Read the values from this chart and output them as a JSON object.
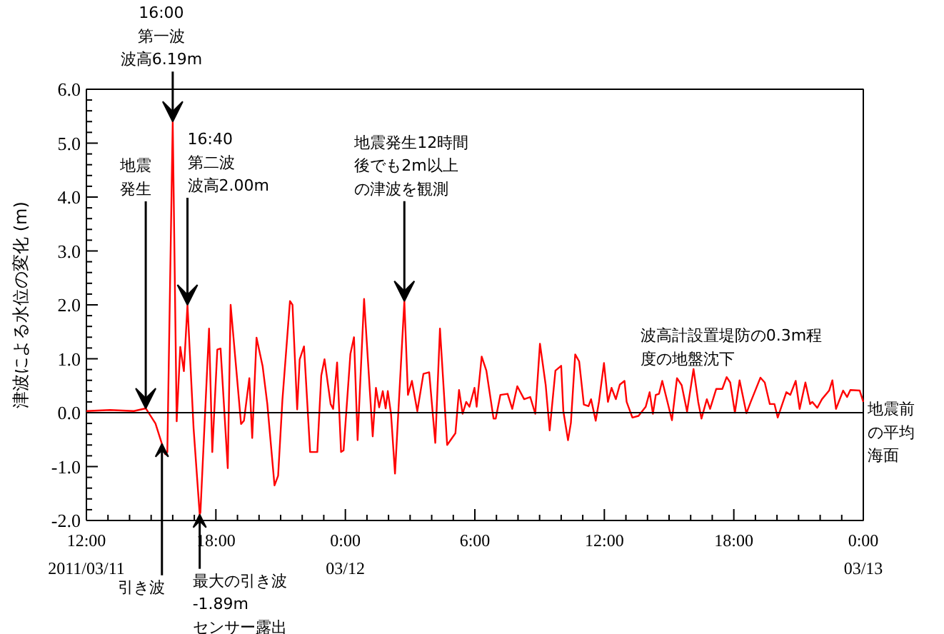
{
  "chart_data": {
    "type": "line",
    "ylabel": "津波による水位の変化 (m)",
    "xlim": [
      "2011-03-11T12:00",
      "2011-03-13T00:00"
    ],
    "ylim": [
      -2,
      6
    ],
    "xticks": [
      {
        "value": "2011-03-11T12:00",
        "label": "12:00\n2011/03/11"
      },
      {
        "value": "2011-03-11T18:00",
        "label": "18:00"
      },
      {
        "value": "2011-03-12T00:00",
        "label": "0:00\n03/12"
      },
      {
        "value": "2011-03-12T06:00",
        "label": "6:00"
      },
      {
        "value": "2011-03-12T12:00",
        "label": "12:00"
      },
      {
        "value": "2011-03-12T18:00",
        "label": "18:00"
      },
      {
        "value": "2011-03-13T00:00",
        "label": "0:00\n03/13"
      }
    ],
    "yticks": [
      {
        "value": -2,
        "label": "-2.0"
      },
      {
        "value": -1,
        "label": "-1.0"
      },
      {
        "value": 0,
        "label": "0.0"
      },
      {
        "value": 1,
        "label": "1.0"
      },
      {
        "value": 2,
        "label": "2.0"
      },
      {
        "value": 3,
        "label": "3.0"
      },
      {
        "value": 4,
        "label": "4.0"
      },
      {
        "value": 5,
        "label": "5.0"
      },
      {
        "value": 6,
        "label": "6.0"
      }
    ],
    "series": [
      {
        "color": "#ff0000",
        "x": [
          "2011-03-11T12:00",
          "2011-03-11T13:06",
          "2011-03-11T14:12",
          "2011-03-11T14:45",
          "2011-03-11T15:12",
          "2011-03-11T15:39",
          "2011-03-11T15:45",
          "2011-03-11T16:00",
          "2011-03-11T16:11",
          "2011-03-11T16:21",
          "2011-03-11T16:31",
          "2011-03-11T16:41",
          "2011-03-11T16:58",
          "2011-03-11T17:15",
          "2011-03-11T17:17",
          "2011-03-11T17:41",
          "2011-03-11T17:50",
          "2011-03-11T18:04",
          "2011-03-11T18:13",
          "2011-03-11T18:33",
          "2011-03-11T18:41",
          "2011-03-11T19:10",
          "2011-03-11T19:18",
          "2011-03-11T19:33",
          "2011-03-11T19:41",
          "2011-03-11T19:53",
          "2011-03-11T20:10",
          "2011-03-11T20:23",
          "2011-03-11T20:43",
          "2011-03-11T20:53",
          "2011-03-11T21:05",
          "2011-03-11T21:26",
          "2011-03-11T21:33",
          "2011-03-11T21:46",
          "2011-03-11T21:53",
          "2011-03-11T22:05",
          "2011-03-11T22:22",
          "2011-03-11T22:42",
          "2011-03-11T22:53",
          "2011-03-11T23:02",
          "2011-03-11T23:19",
          "2011-03-11T23:26",
          "2011-03-11T23:37",
          "2011-03-11T23:48",
          "2011-03-11T23:55",
          "2011-03-12T00:14",
          "2011-03-12T00:24",
          "2011-03-12T00:34",
          "2011-03-12T00:52",
          "2011-03-12T01:16",
          "2011-03-12T01:25",
          "2011-03-12T01:34",
          "2011-03-12T01:44",
          "2011-03-12T01:52",
          "2011-03-12T01:58",
          "2011-03-12T02:07",
          "2011-03-12T02:18",
          "2011-03-12T02:44",
          "2011-03-12T02:54",
          "2011-03-12T03:05",
          "2011-03-12T03:20",
          "2011-03-12T03:37",
          "2011-03-12T03:53",
          "2011-03-12T04:10",
          "2011-03-12T04:23",
          "2011-03-12T04:43",
          "2011-03-12T05:06",
          "2011-03-12T05:16",
          "2011-03-12T05:26",
          "2011-03-12T05:36",
          "2011-03-12T05:45",
          "2011-03-12T05:59",
          "2011-03-12T06:05",
          "2011-03-12T06:19",
          "2011-03-12T06:32",
          "2011-03-12T06:52",
          "2011-03-12T06:58",
          "2011-03-12T07:11",
          "2011-03-12T07:31",
          "2011-03-12T07:44",
          "2011-03-12T07:58",
          "2011-03-12T08:17",
          "2011-03-12T08:34",
          "2011-03-12T08:48",
          "2011-03-12T09:01",
          "2011-03-12T09:17",
          "2011-03-12T09:28",
          "2011-03-12T09:44",
          "2011-03-12T10:00",
          "2011-03-12T10:06",
          "2011-03-12T10:19",
          "2011-03-12T10:27",
          "2011-03-12T10:39",
          "2011-03-12T10:50",
          "2011-03-12T11:03",
          "2011-03-12T11:16",
          "2011-03-12T11:23",
          "2011-03-12T11:36",
          "2011-03-12T11:45",
          "2011-03-12T11:59",
          "2011-03-12T12:10",
          "2011-03-12T12:20",
          "2011-03-12T12:32",
          "2011-03-12T12:43",
          "2011-03-12T12:56",
          "2011-03-12T13:02",
          "2011-03-12T13:18",
          "2011-03-12T13:35",
          "2011-03-12T13:55",
          "2011-03-12T14:06",
          "2011-03-12T14:15",
          "2011-03-12T14:23",
          "2011-03-12T14:32",
          "2011-03-12T14:41",
          "2011-03-12T15:08",
          "2011-03-12T15:22",
          "2011-03-12T15:35",
          "2011-03-12T15:50",
          "2011-03-12T16:08",
          "2011-03-12T16:21",
          "2011-03-12T16:30",
          "2011-03-12T16:45",
          "2011-03-12T16:54",
          "2011-03-12T17:11",
          "2011-03-12T17:28",
          "2011-03-12T17:40",
          "2011-03-12T17:50",
          "2011-03-12T18:03",
          "2011-03-12T18:16",
          "2011-03-12T18:35",
          "2011-03-12T18:47",
          "2011-03-12T19:14",
          "2011-03-12T19:26",
          "2011-03-12T19:40",
          "2011-03-12T19:53",
          "2011-03-12T20:02",
          "2011-03-12T20:26",
          "2011-03-12T20:37",
          "2011-03-12T20:52",
          "2011-03-12T21:03",
          "2011-03-12T21:19",
          "2011-03-12T21:32",
          "2011-03-12T21:38",
          "2011-03-12T21:52",
          "2011-03-12T22:05",
          "2011-03-12T22:25",
          "2011-03-12T22:34",
          "2011-03-12T22:44",
          "2011-03-12T23:04",
          "2011-03-12T23:15",
          "2011-03-12T23:24",
          "2011-03-12T23:50",
          "2011-03-13T00:00"
        ],
        "values": [
          0.03,
          0.05,
          0.03,
          0.08,
          -0.2,
          -0.77,
          -0.73,
          5.4,
          -0.16,
          1.22,
          0.77,
          2.0,
          -0.29,
          -1.89,
          -1.85,
          1.56,
          -0.73,
          1.17,
          1.19,
          -1.03,
          2.0,
          -0.21,
          -0.15,
          0.64,
          -0.47,
          1.39,
          0.86,
          0.16,
          -1.35,
          -1.17,
          0.24,
          2.07,
          2.0,
          0.06,
          0.99,
          1.23,
          -0.73,
          -0.73,
          0.69,
          0.99,
          0.16,
          0.07,
          0.93,
          -0.73,
          -0.7,
          1.09,
          1.4,
          -0.51,
          2.11,
          -0.44,
          0.46,
          0.1,
          0.4,
          0.08,
          0.4,
          -0.03,
          -1.13,
          2.07,
          0.33,
          0.59,
          0.03,
          0.72,
          0.75,
          -0.56,
          1.56,
          -0.6,
          -0.38,
          0.42,
          -0.02,
          0.2,
          0.11,
          0.46,
          0.11,
          1.04,
          0.78,
          -0.11,
          -0.11,
          0.33,
          0.35,
          0.07,
          0.49,
          0.25,
          0.29,
          -0.02,
          1.28,
          0.51,
          -0.33,
          0.78,
          0.87,
          0.03,
          -0.51,
          -0.19,
          1.08,
          0.95,
          0.15,
          0.12,
          0.25,
          -0.15,
          0.2,
          0.92,
          0.2,
          0.46,
          0.25,
          0.52,
          0.59,
          0.2,
          -0.09,
          -0.06,
          0.11,
          0.38,
          -0.02,
          0.33,
          0.35,
          0.59,
          -0.14,
          0.64,
          0.51,
          0.02,
          0.81,
          0.2,
          -0.11,
          0.25,
          0.07,
          0.44,
          0.44,
          0.66,
          0.56,
          0,
          0.6,
          -0.01,
          0.2,
          0.65,
          0.56,
          0.16,
          0.16,
          -0.09,
          0.38,
          0.33,
          0.59,
          0.07,
          0.56,
          0.16,
          0.2,
          0.09,
          0.25,
          0.41,
          0.6,
          0.07,
          0.41,
          0.29,
          0.42,
          0.41,
          0.2
        ]
      }
    ],
    "ref_lines": [
      {
        "axis": "y",
        "value": 0,
        "label": "地震前の平均海面"
      }
    ],
    "annotations": [
      {
        "text": "地震発生",
        "x": "2011-03-11T14:45",
        "y": 0.08
      },
      {
        "text": "16:00第一波波高6.19m",
        "x": "2011-03-11T16:00",
        "y": 5.4
      },
      {
        "text": "16:40第二波波高2.00m",
        "x": "2011-03-11T16:41",
        "y": 2.0
      },
      {
        "text": "地震発生12時間後でも2m以上の津波を観測",
        "x": "2011-03-12T02:44",
        "y": 2.07
      },
      {
        "text": "引き波",
        "x": "2011-03-11T15:30",
        "y": -0.58
      },
      {
        "text": "最大の引き波-1.89mセンサー露出",
        "x": "2011-03-11T17:15",
        "y": -1.89
      },
      "波高計設置堤防の0.3m程度の地盤沈下"
    ],
    "grid": false,
    "marker": "none",
    "line_style": "solid"
  }
}
